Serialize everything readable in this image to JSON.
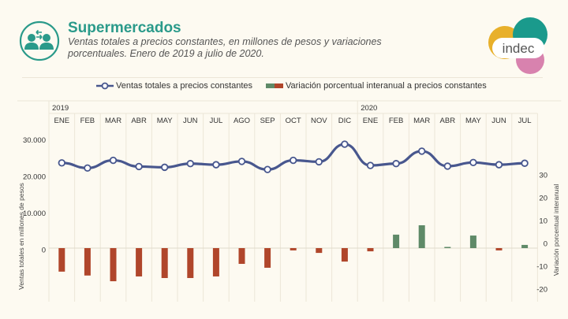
{
  "header": {
    "title": "Supermercados",
    "subtitle": "Ventas totales a precios constantes, en millones de pesos y variaciones porcentuales. Enero de 2019 a julio de 2020.",
    "topic_icon": "people-exchange-icon",
    "logo_text": "indec"
  },
  "colors": {
    "brand_teal": "#2a9a8a",
    "line": "#48578e",
    "bar_negative": "#b0462b",
    "bar_positive": "#5f8a68",
    "logo_yellow": "#e8b02b",
    "logo_teal": "#1a9a8c",
    "logo_pink": "#d882ae"
  },
  "chart_data": {
    "type": "bar",
    "title": "Supermercados",
    "subtitle": "Ventas totales a precios constantes, en millones de pesos y variaciones porcentuales. Enero de 2019 a julio de 2020.",
    "years": [
      {
        "label": "2019",
        "start_index": 0
      },
      {
        "label": "2020",
        "start_index": 12
      }
    ],
    "categories": [
      "ENE",
      "FEB",
      "MAR",
      "ABR",
      "MAY",
      "JUN",
      "JUL",
      "AGO",
      "SEP",
      "OCT",
      "NOV",
      "DIC",
      "ENE",
      "FEB",
      "MAR",
      "ABR",
      "MAY",
      "JUN",
      "JUL"
    ],
    "series": [
      {
        "name": "Ventas totales a precios constantes",
        "type": "line",
        "axis": "left",
        "values": [
          23700,
          22300,
          24400,
          22700,
          22500,
          23500,
          23200,
          24100,
          21900,
          24400,
          24000,
          28800,
          23000,
          23500,
          26900,
          22800,
          23800,
          23200,
          23600
        ]
      },
      {
        "name": "Variación porcentual interanual a precios constantes",
        "type": "bar",
        "axis": "right",
        "values": [
          -10.3,
          -12.0,
          -14.5,
          -12.4,
          -13.1,
          -13.1,
          -12.4,
          -6.9,
          -8.6,
          -1.0,
          -2.1,
          -5.9,
          -1.4,
          5.9,
          10.0,
          0.3,
          5.5,
          -1.0,
          1.4
        ]
      }
    ],
    "left_axis": {
      "label": "Ventas totales en millones de pesos",
      "ticks": [
        "30.000",
        "20.000",
        "10.000",
        "0"
      ],
      "tick_values": [
        30000,
        20000,
        10000,
        0
      ]
    },
    "right_axis": {
      "label": "Variación porcentual interanual",
      "ticks": [
        "30",
        "20",
        "10",
        "0",
        "-10",
        "-20"
      ],
      "tick_values": [
        30,
        20,
        10,
        0,
        -10,
        -20
      ]
    },
    "grid": "vertical",
    "legend": "top-center"
  }
}
